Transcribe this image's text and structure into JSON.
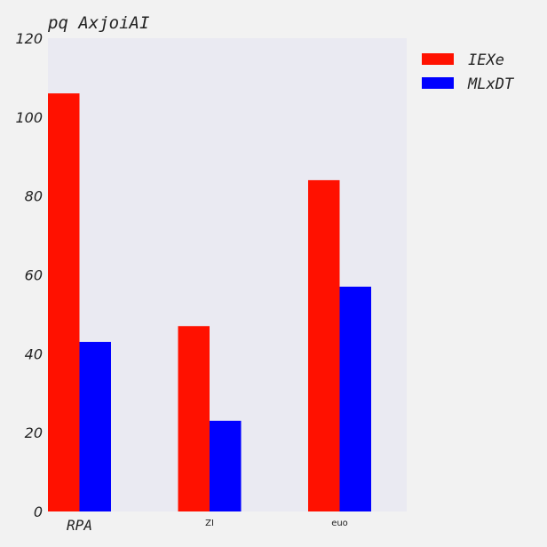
{
  "chart_data": {
    "type": "bar",
    "title": "pq AxjoiAI",
    "xlabel": "",
    "ylabel": "",
    "categories": [
      "RPA",
      "ZI",
      "euo"
    ],
    "series": [
      {
        "name": "IEXe",
        "color": "#ff1100",
        "values": [
          106,
          47,
          84
        ]
      },
      {
        "name": "MLxDT",
        "color": "#0000ff",
        "values": [
          43,
          23,
          57
        ]
      }
    ],
    "ylim": [
      0,
      120
    ],
    "yticks": [
      0,
      20,
      40,
      60,
      80,
      100,
      120
    ],
    "grid": false,
    "legend_position": "outside-top-right",
    "plot_background": "#eaeaf2"
  }
}
